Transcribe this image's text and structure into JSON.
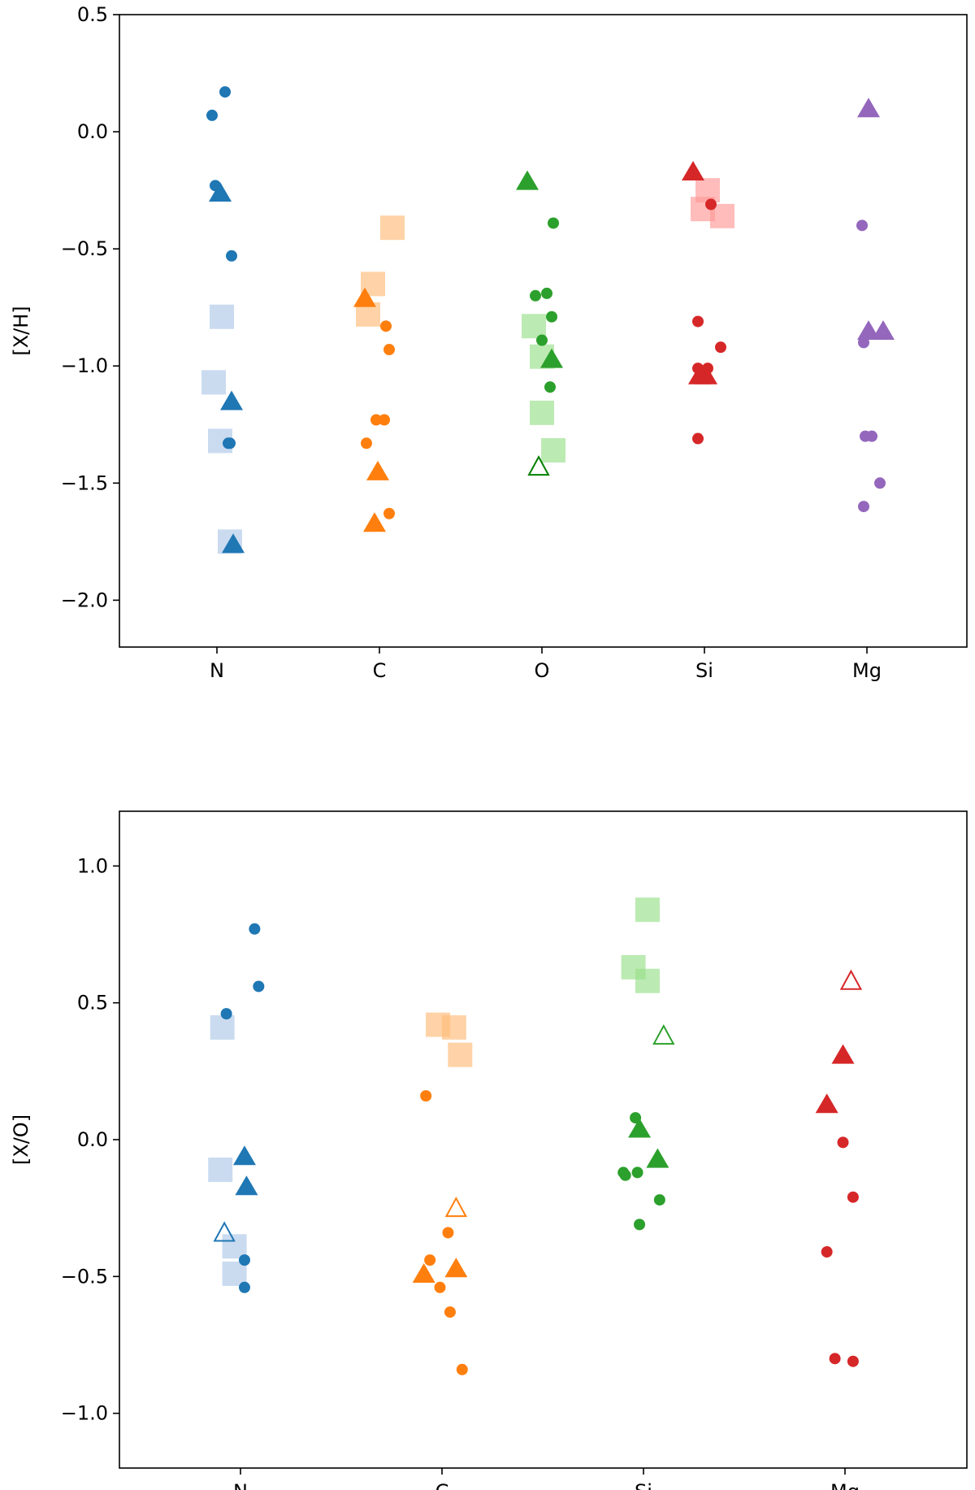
{
  "chart_data": [
    {
      "type": "scatter",
      "title": "",
      "xlabel": "",
      "ylabel": "[X/H]",
      "categories": [
        "N",
        "C",
        "O",
        "Si",
        "Mg"
      ],
      "ylim": [
        -2.2,
        0.5
      ],
      "yticks": [
        0.5,
        0.0,
        -0.5,
        -1.0,
        -1.5,
        -2.0
      ],
      "ytick_labels": [
        "0.5",
        "0.0",
        "−0.5",
        "−1.0",
        "−1.5",
        "−2.0"
      ],
      "series": [
        {
          "name": "circles",
          "marker": "circle",
          "points": [
            {
              "cat": "N",
              "offset": -0.03,
              "y": 0.07,
              "color": "#1f77b4"
            },
            {
              "cat": "N",
              "offset": 0.05,
              "y": 0.17,
              "color": "#1f77b4"
            },
            {
              "cat": "N",
              "offset": -0.01,
              "y": -0.23,
              "color": "#1f77b4"
            },
            {
              "cat": "N",
              "offset": 0.09,
              "y": -0.53,
              "color": "#1f77b4"
            },
            {
              "cat": "N",
              "offset": 0.07,
              "y": -1.33,
              "color": "#1f77b4"
            },
            {
              "cat": "N",
              "offset": 0.08,
              "y": -1.33,
              "color": "#1f77b4"
            },
            {
              "cat": "C",
              "offset": 0.04,
              "y": -0.83,
              "color": "#ff7f0e"
            },
            {
              "cat": "C",
              "offset": 0.06,
              "y": -0.93,
              "color": "#ff7f0e"
            },
            {
              "cat": "C",
              "offset": -0.02,
              "y": -1.23,
              "color": "#ff7f0e"
            },
            {
              "cat": "C",
              "offset": 0.03,
              "y": -1.23,
              "color": "#ff7f0e"
            },
            {
              "cat": "C",
              "offset": -0.08,
              "y": -1.33,
              "color": "#ff7f0e"
            },
            {
              "cat": "C",
              "offset": 0.06,
              "y": -1.63,
              "color": "#ff7f0e"
            },
            {
              "cat": "O",
              "offset": 0.07,
              "y": -0.39,
              "color": "#2ca02c"
            },
            {
              "cat": "O",
              "offset": -0.04,
              "y": -0.7,
              "color": "#2ca02c"
            },
            {
              "cat": "O",
              "offset": 0.03,
              "y": -0.69,
              "color": "#2ca02c"
            },
            {
              "cat": "O",
              "offset": 0.06,
              "y": -0.79,
              "color": "#2ca02c"
            },
            {
              "cat": "O",
              "offset": 0.0,
              "y": -0.89,
              "color": "#2ca02c"
            },
            {
              "cat": "O",
              "offset": 0.05,
              "y": -1.09,
              "color": "#2ca02c"
            },
            {
              "cat": "Si",
              "offset": 0.04,
              "y": -0.31,
              "color": "#d62728"
            },
            {
              "cat": "Si",
              "offset": -0.04,
              "y": -0.81,
              "color": "#d62728"
            },
            {
              "cat": "Si",
              "offset": 0.1,
              "y": -0.92,
              "color": "#d62728"
            },
            {
              "cat": "Si",
              "offset": -0.04,
              "y": -1.01,
              "color": "#d62728"
            },
            {
              "cat": "Si",
              "offset": 0.02,
              "y": -1.01,
              "color": "#d62728"
            },
            {
              "cat": "Si",
              "offset": -0.04,
              "y": -1.31,
              "color": "#d62728"
            },
            {
              "cat": "Mg",
              "offset": -0.03,
              "y": -0.4,
              "color": "#9467bd"
            },
            {
              "cat": "Mg",
              "offset": -0.02,
              "y": -0.9,
              "color": "#9467bd"
            },
            {
              "cat": "Mg",
              "offset": -0.01,
              "y": -1.3,
              "color": "#9467bd"
            },
            {
              "cat": "Mg",
              "offset": 0.03,
              "y": -1.3,
              "color": "#9467bd"
            },
            {
              "cat": "Mg",
              "offset": 0.08,
              "y": -1.5,
              "color": "#9467bd"
            },
            {
              "cat": "Mg",
              "offset": -0.02,
              "y": -1.6,
              "color": "#9467bd"
            }
          ]
        },
        {
          "name": "filled triangles",
          "marker": "triangle",
          "points": [
            {
              "cat": "N",
              "offset": 0.02,
              "y": -0.26,
              "color": "#1f77b4"
            },
            {
              "cat": "N",
              "offset": 0.09,
              "y": -1.15,
              "color": "#1f77b4"
            },
            {
              "cat": "N",
              "offset": 0.1,
              "y": -1.76,
              "color": "#1f77b4"
            },
            {
              "cat": "C",
              "offset": -0.09,
              "y": -0.71,
              "color": "#ff7f0e"
            },
            {
              "cat": "C",
              "offset": -0.01,
              "y": -1.45,
              "color": "#ff7f0e"
            },
            {
              "cat": "C",
              "offset": -0.03,
              "y": -1.67,
              "color": "#ff7f0e"
            },
            {
              "cat": "O",
              "offset": -0.09,
              "y": -0.21,
              "color": "#2ca02c"
            },
            {
              "cat": "O",
              "offset": 0.06,
              "y": -0.97,
              "color": "#2ca02c"
            },
            {
              "cat": "Si",
              "offset": -0.07,
              "y": -0.17,
              "color": "#d62728"
            },
            {
              "cat": "Si",
              "offset": -0.03,
              "y": -1.04,
              "color": "#d62728"
            },
            {
              "cat": "Si",
              "offset": 0.01,
              "y": -1.04,
              "color": "#d62728"
            },
            {
              "cat": "Mg",
              "offset": 0.01,
              "y": 0.1,
              "color": "#9467bd"
            },
            {
              "cat": "Mg",
              "offset": 0.01,
              "y": -0.85,
              "color": "#9467bd"
            },
            {
              "cat": "Mg",
              "offset": 0.1,
              "y": -0.85,
              "color": "#9467bd"
            }
          ]
        },
        {
          "name": "open triangles",
          "marker": "open-triangle",
          "points": [
            {
              "cat": "O",
              "offset": -0.02,
              "y": -1.43,
              "color": "#008000"
            }
          ]
        },
        {
          "name": "squares",
          "marker": "square",
          "points": [
            {
              "cat": "N",
              "offset": 0.03,
              "y": -0.79,
              "color": "#aec7e8"
            },
            {
              "cat": "N",
              "offset": -0.02,
              "y": -1.07,
              "color": "#aec7e8"
            },
            {
              "cat": "N",
              "offset": 0.02,
              "y": -1.32,
              "color": "#aec7e8"
            },
            {
              "cat": "N",
              "offset": 0.08,
              "y": -1.75,
              "color": "#aec7e8"
            },
            {
              "cat": "C",
              "offset": 0.08,
              "y": -0.41,
              "color": "#ffbb78"
            },
            {
              "cat": "C",
              "offset": -0.04,
              "y": -0.65,
              "color": "#ffbb78"
            },
            {
              "cat": "C",
              "offset": -0.07,
              "y": -0.78,
              "color": "#ffbb78"
            },
            {
              "cat": "O",
              "offset": -0.05,
              "y": -0.83,
              "color": "#98df8a"
            },
            {
              "cat": "O",
              "offset": 0.0,
              "y": -0.96,
              "color": "#98df8a"
            },
            {
              "cat": "O",
              "offset": 0.0,
              "y": -1.2,
              "color": "#98df8a"
            },
            {
              "cat": "O",
              "offset": 0.07,
              "y": -1.36,
              "color": "#98df8a"
            },
            {
              "cat": "Si",
              "offset": 0.02,
              "y": -0.25,
              "color": "#ff9896"
            },
            {
              "cat": "Si",
              "offset": -0.01,
              "y": -0.33,
              "color": "#ff9896"
            },
            {
              "cat": "Si",
              "offset": 0.11,
              "y": -0.36,
              "color": "#ff9896"
            }
          ]
        }
      ]
    },
    {
      "type": "scatter",
      "title": "",
      "xlabel": "",
      "ylabel": "[X/O]",
      "categories": [
        "N",
        "C",
        "Si",
        "Mg"
      ],
      "ylim": [
        -1.2,
        1.2
      ],
      "yticks": [
        1.0,
        0.5,
        0.0,
        -0.5,
        -1.0
      ],
      "ytick_labels": [
        "1.0",
        "0.5",
        "0.0",
        "−0.5",
        "−1.0"
      ],
      "series": [
        {
          "name": "circles",
          "marker": "circle",
          "points": [
            {
              "cat": "N",
              "offset": 0.07,
              "y": 0.77,
              "color": "#1f77b4"
            },
            {
              "cat": "N",
              "offset": 0.09,
              "y": 0.56,
              "color": "#1f77b4"
            },
            {
              "cat": "N",
              "offset": -0.07,
              "y": 0.46,
              "color": "#1f77b4"
            },
            {
              "cat": "N",
              "offset": 0.02,
              "y": -0.44,
              "color": "#1f77b4"
            },
            {
              "cat": "N",
              "offset": 0.02,
              "y": -0.54,
              "color": "#1f77b4"
            },
            {
              "cat": "C",
              "offset": -0.08,
              "y": 0.16,
              "color": "#ff7f0e"
            },
            {
              "cat": "C",
              "offset": 0.03,
              "y": -0.34,
              "color": "#ff7f0e"
            },
            {
              "cat": "C",
              "offset": -0.06,
              "y": -0.44,
              "color": "#ff7f0e"
            },
            {
              "cat": "C",
              "offset": -0.01,
              "y": -0.54,
              "color": "#ff7f0e"
            },
            {
              "cat": "C",
              "offset": 0.04,
              "y": -0.63,
              "color": "#ff7f0e"
            },
            {
              "cat": "C",
              "offset": 0.1,
              "y": -0.84,
              "color": "#ff7f0e"
            },
            {
              "cat": "Si",
              "offset": -0.04,
              "y": 0.08,
              "color": "#2ca02c"
            },
            {
              "cat": "Si",
              "offset": -0.1,
              "y": -0.12,
              "color": "#2ca02c"
            },
            {
              "cat": "Si",
              "offset": -0.03,
              "y": -0.12,
              "color": "#2ca02c"
            },
            {
              "cat": "Si",
              "offset": -0.09,
              "y": -0.13,
              "color": "#2ca02c"
            },
            {
              "cat": "Si",
              "offset": 0.08,
              "y": -0.22,
              "color": "#2ca02c"
            },
            {
              "cat": "Si",
              "offset": -0.02,
              "y": -0.31,
              "color": "#2ca02c"
            },
            {
              "cat": "Mg",
              "offset": -0.01,
              "y": -0.01,
              "color": "#d62728"
            },
            {
              "cat": "Mg",
              "offset": 0.04,
              "y": -0.21,
              "color": "#d62728"
            },
            {
              "cat": "Mg",
              "offset": -0.09,
              "y": -0.41,
              "color": "#d62728"
            },
            {
              "cat": "Mg",
              "offset": -0.05,
              "y": -0.8,
              "color": "#d62728"
            },
            {
              "cat": "Mg",
              "offset": 0.04,
              "y": -0.81,
              "color": "#d62728"
            }
          ]
        },
        {
          "name": "filled triangles",
          "marker": "triangle",
          "points": [
            {
              "cat": "N",
              "offset": 0.02,
              "y": -0.06,
              "color": "#1f77b4"
            },
            {
              "cat": "N",
              "offset": 0.03,
              "y": -0.17,
              "color": "#1f77b4"
            },
            {
              "cat": "C",
              "offset": -0.09,
              "y": -0.49,
              "color": "#ff7f0e"
            },
            {
              "cat": "C",
              "offset": 0.07,
              "y": -0.47,
              "color": "#ff7f0e"
            },
            {
              "cat": "Si",
              "offset": -0.02,
              "y": 0.04,
              "color": "#2ca02c"
            },
            {
              "cat": "Si",
              "offset": 0.07,
              "y": -0.07,
              "color": "#2ca02c"
            },
            {
              "cat": "Mg",
              "offset": -0.09,
              "y": 0.13,
              "color": "#d62728"
            },
            {
              "cat": "Mg",
              "offset": -0.01,
              "y": 0.31,
              "color": "#d62728"
            }
          ]
        },
        {
          "name": "open triangles",
          "marker": "open-triangle",
          "points": [
            {
              "cat": "N",
              "offset": -0.08,
              "y": -0.34,
              "color": "#1f77b4"
            },
            {
              "cat": "C",
              "offset": 0.07,
              "y": -0.25,
              "color": "#ff7f0e"
            },
            {
              "cat": "Si",
              "offset": 0.1,
              "y": 0.38,
              "color": "#2ca02c"
            },
            {
              "cat": "Mg",
              "offset": 0.03,
              "y": 0.58,
              "color": "#d62728"
            }
          ]
        },
        {
          "name": "squares",
          "marker": "square",
          "points": [
            {
              "cat": "N",
              "offset": -0.09,
              "y": 0.41,
              "color": "#aec7e8"
            },
            {
              "cat": "N",
              "offset": -0.1,
              "y": -0.11,
              "color": "#aec7e8"
            },
            {
              "cat": "N",
              "offset": -0.03,
              "y": -0.39,
              "color": "#aec7e8"
            },
            {
              "cat": "N",
              "offset": -0.03,
              "y": -0.49,
              "color": "#aec7e8"
            },
            {
              "cat": "C",
              "offset": -0.02,
              "y": 0.42,
              "color": "#ffbb78"
            },
            {
              "cat": "C",
              "offset": 0.06,
              "y": 0.41,
              "color": "#ffbb78"
            },
            {
              "cat": "C",
              "offset": 0.09,
              "y": 0.31,
              "color": "#ffbb78"
            },
            {
              "cat": "Si",
              "offset": 0.02,
              "y": 0.84,
              "color": "#98df8a"
            },
            {
              "cat": "Si",
              "offset": -0.05,
              "y": 0.63,
              "color": "#98df8a"
            },
            {
              "cat": "Si",
              "offset": 0.02,
              "y": 0.58,
              "color": "#98df8a"
            }
          ]
        }
      ]
    }
  ]
}
